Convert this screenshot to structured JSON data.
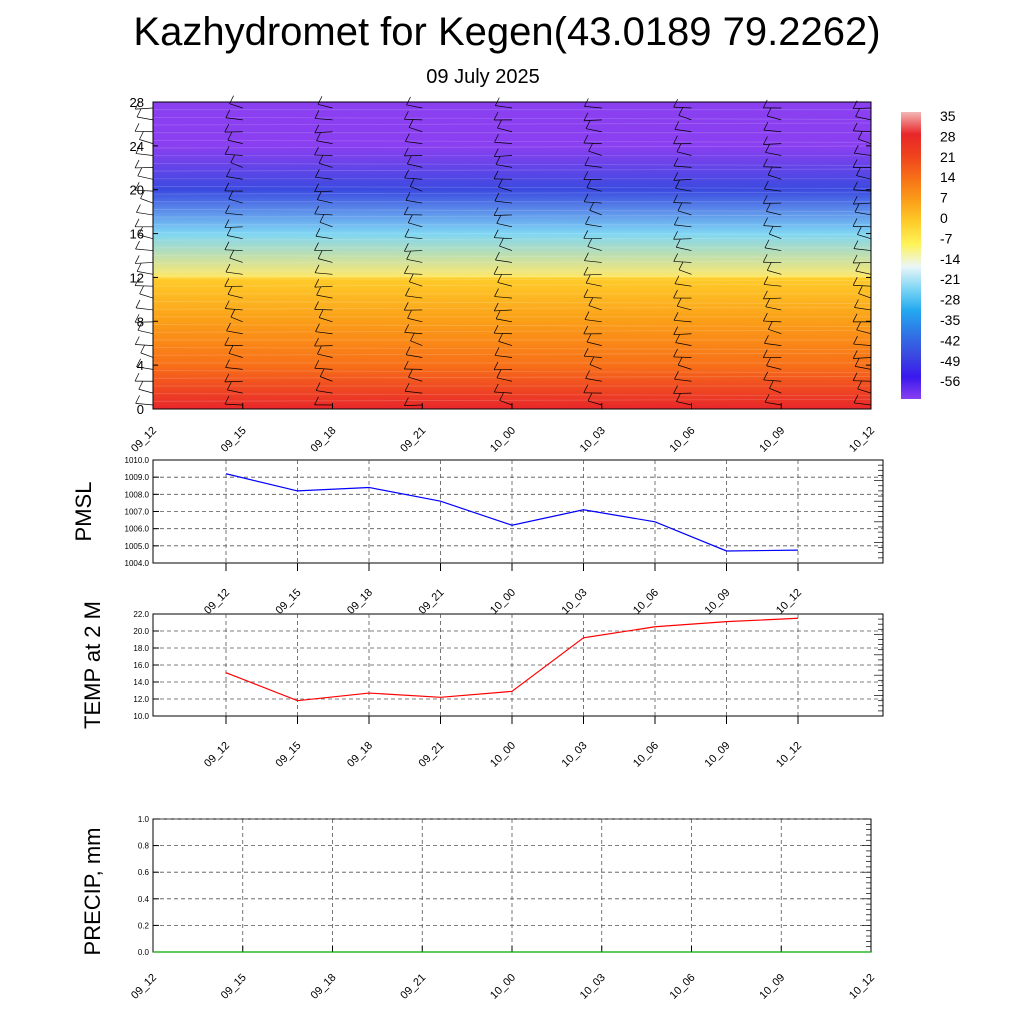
{
  "title": "Kazhydromet for Kegen(43.0189 79.2262)",
  "subtitle": "09 July 2025",
  "chart_data": [
    {
      "type": "heatmap",
      "x_labels": [
        "09_12",
        "09_15",
        "09_18",
        "09_21",
        "10_00",
        "10_03",
        "10_06",
        "10_09",
        "10_12"
      ],
      "y_ticks": [
        0,
        4,
        8,
        12,
        16,
        20,
        24,
        28
      ],
      "ylim": [
        0,
        28
      ],
      "colorbar": {
        "labels": [
          "35",
          "28",
          "21",
          "14",
          "7",
          "0",
          "-7",
          "-14",
          "-21",
          "-28",
          "-35",
          "-42",
          "-49",
          "-56"
        ],
        "stops": [
          "#f4b6b6",
          "#e8262a",
          "#f0431d",
          "#f87018",
          "#fb9e18",
          "#fecd2a",
          "#fff35a",
          "#eaf6f8",
          "#7fd6f4",
          "#23a8f0",
          "#2f76e6",
          "#3b4ae0",
          "#3a18ee",
          "#8a3ff0"
        ]
      },
      "field": {
        "description_levels": [
          0,
          4,
          8,
          12,
          16,
          20,
          24,
          28
        ],
        "values": [
          25,
          17,
          9,
          0,
          -18,
          -45,
          -56,
          -58
        ],
        "note": ""
      }
    },
    {
      "type": "line",
      "ylabel": "PMSL",
      "x": [
        "09_12",
        "09_15",
        "09_18",
        "09_21",
        "10_00",
        "10_03",
        "10_06",
        "10_09",
        "10_12"
      ],
      "series": [
        {
          "values": [
            1009.2,
            1008.2,
            1008.4,
            1007.6,
            1006.2,
            1007.1,
            1006.4,
            1004.7,
            1004.75
          ],
          "color": "#0000ff"
        }
      ],
      "ylim": [
        1004.0,
        1010.0
      ],
      "yticks": [
        "1004.0",
        "1005.0",
        "1006.0",
        "1007.0",
        "1008.0",
        "1009.0",
        "1010.0"
      ],
      "grid": true
    },
    {
      "type": "line",
      "ylabel": "TEMP at 2 M",
      "x": [
        "09_12",
        "09_15",
        "09_18",
        "09_21",
        "10_00",
        "10_03",
        "10_06",
        "10_09",
        "10_12"
      ],
      "series": [
        {
          "values": [
            15.1,
            11.8,
            12.7,
            12.2,
            12.9,
            19.2,
            20.5,
            21.1,
            21.5
          ],
          "color": "#ff0000"
        }
      ],
      "ylim": [
        10.0,
        22.0
      ],
      "yticks": [
        "10.0",
        "12.0",
        "14.0",
        "16.0",
        "18.0",
        "20.0",
        "22.0"
      ],
      "grid": true
    },
    {
      "type": "line",
      "ylabel": "PRECIP, mm",
      "x": [
        "09_12",
        "09_15",
        "09_18",
        "09_21",
        "10_00",
        "10_03",
        "10_06",
        "10_09",
        "10_12"
      ],
      "series": [
        {
          "values": [
            0,
            0,
            0,
            0,
            0,
            0,
            0,
            0,
            0
          ],
          "color": "#00aa00"
        }
      ],
      "ylim": [
        0.0,
        1.0
      ],
      "yticks": [
        "0.0",
        "0.2",
        "0.4",
        "0.6",
        "0.8",
        "1.0"
      ],
      "grid": true
    }
  ]
}
